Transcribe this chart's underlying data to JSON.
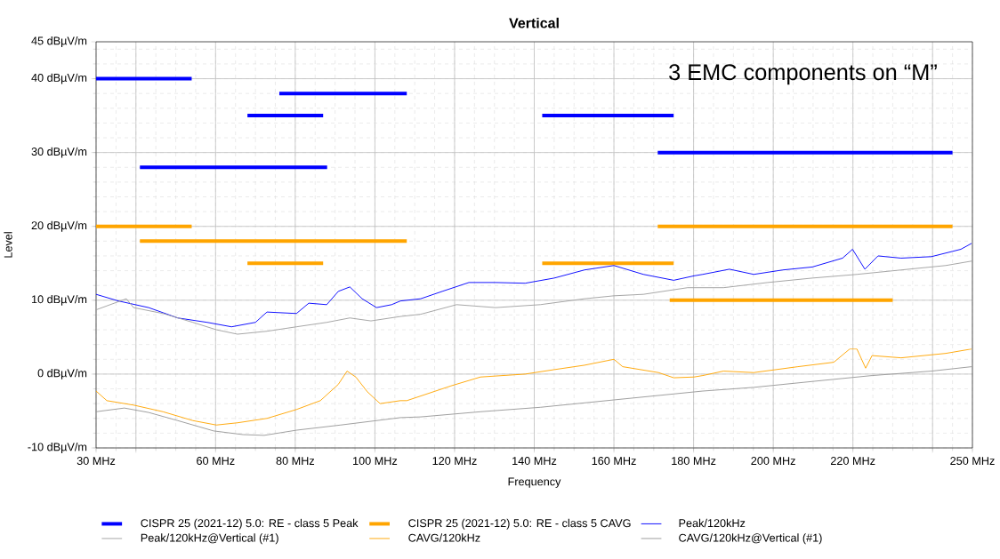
{
  "chart_data": {
    "type": "line",
    "title": "Vertical",
    "xlabel": "Frequency",
    "ylabel": "Level",
    "annotations": [
      "3 EMC components on “M”"
    ],
    "xlim": [
      30,
      250
    ],
    "ylim": [
      -10,
      45
    ],
    "xticks": [
      {
        "value": 30,
        "label": "30 MHz"
      },
      {
        "value": 40,
        "label": null
      },
      {
        "value": 60,
        "label": "60 MHz"
      },
      {
        "value": 80,
        "label": "80 MHz"
      },
      {
        "value": 100,
        "label": "100 MHz"
      },
      {
        "value": 120,
        "label": "120 MHz"
      },
      {
        "value": 140,
        "label": "140 MHz"
      },
      {
        "value": 160,
        "label": "160 MHz"
      },
      {
        "value": 180,
        "label": "180 MHz"
      },
      {
        "value": 200,
        "label": "200 MHz"
      },
      {
        "value": 220,
        "label": "220 MHz"
      },
      {
        "value": 240,
        "label": null
      },
      {
        "value": 250,
        "label": "250 MHz"
      }
    ],
    "yticks": [
      {
        "value": -10,
        "label": "-10 dBµV/m"
      },
      {
        "value": 0,
        "label": "0 dBµV/m"
      },
      {
        "value": 10,
        "label": "10 dBµV/m"
      },
      {
        "value": 20,
        "label": "20 dBµV/m"
      },
      {
        "value": 30,
        "label": "30 dBµV/m"
      },
      {
        "value": 40,
        "label": "40 dBµV/m"
      },
      {
        "value": 45,
        "label": "45 dBµV/m"
      }
    ],
    "grid": true,
    "legend": "bottom",
    "series": [
      {
        "name": "CISPR 25 (2021-12) 5.0: RE - class 5 Peak",
        "color": "#0000ff",
        "x": [
          30,
          54,
          null,
          41,
          88,
          null,
          68,
          87,
          null,
          76,
          108,
          null,
          142,
          175,
          null,
          171,
          245
        ],
        "values": [
          40,
          40,
          null,
          28,
          28,
          null,
          35,
          35,
          null,
          38,
          38,
          null,
          35,
          35,
          null,
          30,
          30
        ]
      },
      {
        "name": "CISPR 25 (2021-12) 5.0: RE - class 5 CAVG",
        "color": "#ffa500",
        "x": [
          30,
          54,
          null,
          41,
          108,
          null,
          68,
          87,
          null,
          142,
          175,
          null,
          171,
          245,
          null,
          174,
          230
        ],
        "values": [
          20,
          20,
          null,
          18,
          18,
          null,
          15,
          15,
          null,
          15,
          15,
          null,
          20,
          20,
          null,
          10,
          10
        ]
      },
      {
        "name": "Peak/120kHz",
        "color": "#0000ff",
        "x": [
          30,
          35.6,
          43.2,
          50.5,
          57.9,
          64,
          70,
          72.9,
          80.3,
          83.4,
          87.9,
          90.8,
          93.7,
          96.8,
          100.4,
          104.2,
          106.4,
          111.5,
          116.9,
          123.6,
          130.3,
          137.7,
          145,
          152.6,
          160,
          167.4,
          175,
          180.1,
          182.3,
          189,
          195.1,
          202.4,
          209.8,
          217.4,
          219.9,
          223,
          226.3,
          232.1,
          239.7,
          247.1,
          249.8
        ],
        "values": [
          10.8,
          9.9,
          9,
          7.6,
          7,
          6.4,
          7,
          8.4,
          8.2,
          9.6,
          9.4,
          11.2,
          11.8,
          10.2,
          9,
          9.4,
          9.9,
          10.2,
          11.2,
          12.4,
          12.4,
          12.3,
          13,
          14.1,
          14.7,
          13.5,
          12.7,
          13.3,
          13.5,
          14.2,
          13.5,
          14.1,
          14.5,
          15.7,
          16.9,
          14.2,
          16,
          15.7,
          15.9,
          16.9,
          17.7
        ]
      },
      {
        "name": "Peak/120kHz@Vertical (#1)",
        "color": "#a0a0a0",
        "x": [
          30,
          37.6,
          39.4,
          46.8,
          54.3,
          60.2,
          65.5,
          72.9,
          80.3,
          87.9,
          93.7,
          99,
          106.4,
          111.5,
          120.5,
          130.3,
          141.5,
          152.6,
          160,
          167.4,
          178.5,
          187.5,
          198.6,
          209.8,
          221,
          232.1,
          243.3,
          249.8
        ],
        "values": [
          8.7,
          10.2,
          9,
          8.2,
          7,
          6,
          5.4,
          5.8,
          6.4,
          7,
          7.6,
          7.2,
          7.8,
          8.1,
          9.4,
          9,
          9.4,
          10.2,
          10.6,
          10.8,
          11.7,
          11.7,
          12.4,
          13,
          13.5,
          14.1,
          14.7,
          15.3
        ]
      },
      {
        "name": "CAVG/120kHz",
        "color": "#ffa500",
        "x": [
          30,
          32.7,
          39.4,
          46.8,
          54.3,
          60.2,
          65.5,
          72.9,
          80.3,
          86.3,
          90.8,
          93,
          95.2,
          98.1,
          101.3,
          106.4,
          108,
          119.1,
          126.5,
          137.7,
          145,
          152.6,
          160,
          162.2,
          171.2,
          175,
          180.1,
          182.3,
          187.5,
          195.1,
          206.2,
          215.2,
          219.2,
          221,
          223.2,
          224.8,
          232.1,
          243.3,
          249.8
        ],
        "values": [
          -2.3,
          -3.6,
          -4.2,
          -5.1,
          -6.3,
          -6.9,
          -6.6,
          -6,
          -4.8,
          -3.6,
          -1.4,
          0.4,
          -0.4,
          -2.4,
          -4,
          -3.6,
          -3.6,
          -1.6,
          -0.4,
          0,
          0.6,
          1.2,
          2,
          1,
          0.2,
          -0.5,
          -0.4,
          -0.2,
          0.4,
          0.2,
          1,
          1.6,
          3.4,
          3.4,
          0.8,
          2.5,
          2.2,
          2.8,
          3.4
        ]
      },
      {
        "name": "CAVG/120kHz@Vertical (#1)",
        "color": "#999999",
        "x": [
          30,
          37.1,
          43.2,
          50.5,
          59.5,
          66.9,
          72.2,
          80.3,
          91.4,
          106.4,
          111.5,
          126.5,
          141.5,
          160,
          182.3,
          195.1,
          209.8,
          224.8,
          239.7,
          249.8
        ],
        "values": [
          -5.1,
          -4.6,
          -5.2,
          -6.3,
          -7.7,
          -8.2,
          -8.3,
          -7.6,
          -6.9,
          -5.9,
          -5.8,
          -5.1,
          -4.5,
          -3.5,
          -2.3,
          -1.8,
          -1,
          -0.2,
          0.4,
          1
        ]
      }
    ]
  }
}
